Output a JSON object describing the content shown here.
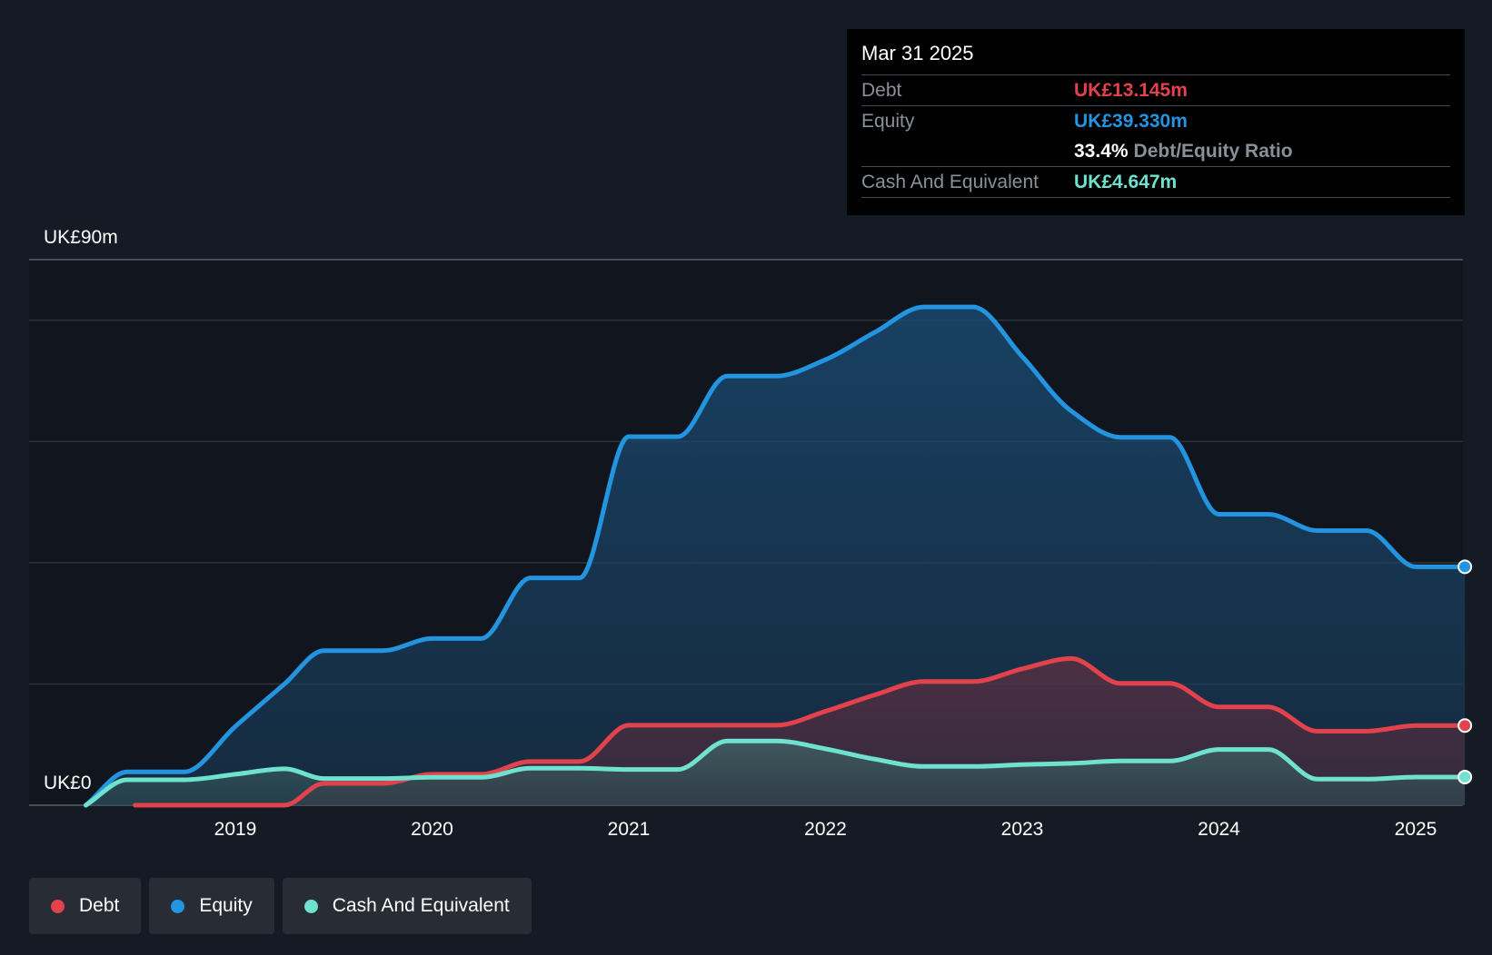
{
  "chart_data": {
    "type": "area",
    "title": "",
    "xlabel": "",
    "ylabel": "",
    "ylim": [
      0,
      90
    ],
    "y_ticks": [
      0,
      20,
      40,
      60,
      80
    ],
    "y_top_label": "UK£90m",
    "y_bottom_label": "UK£0",
    "x_tick_labels": [
      "2019",
      "2020",
      "2021",
      "2022",
      "2023",
      "2024",
      "2025"
    ],
    "x_tick_values": [
      2019,
      2020,
      2021,
      2022,
      2023,
      2024,
      2025
    ],
    "x_range": [
      2018.24,
      2025.25
    ],
    "series": [
      {
        "name": "Equity",
        "color": "#2394df",
        "x": [
          2018.24,
          2018.45,
          2018.74,
          2019.0,
          2019.25,
          2019.45,
          2019.75,
          2020.0,
          2020.25,
          2020.5,
          2020.75,
          2021.0,
          2021.25,
          2021.5,
          2021.75,
          2022.0,
          2022.25,
          2022.5,
          2022.75,
          2023.0,
          2023.25,
          2023.5,
          2023.75,
          2024.0,
          2024.25,
          2024.5,
          2024.75,
          2025.0,
          2025.25
        ],
        "values": [
          0,
          5.5,
          5.5,
          13,
          20,
          25.5,
          25.5,
          27.5,
          27.5,
          37.5,
          37.5,
          60.8,
          60.8,
          70.8,
          70.8,
          73.5,
          78,
          82.2,
          82.2,
          74,
          65,
          60.7,
          60.7,
          48,
          48,
          45.3,
          45.3,
          39.33,
          39.33
        ]
      },
      {
        "name": "Debt",
        "color": "#e2424c",
        "x": [
          2018.49,
          2018.75,
          2019.0,
          2019.25,
          2019.45,
          2019.75,
          2020.0,
          2020.25,
          2020.5,
          2020.75,
          2021.0,
          2021.25,
          2021.5,
          2021.75,
          2022.0,
          2022.25,
          2022.5,
          2022.75,
          2023.0,
          2023.25,
          2023.5,
          2023.75,
          2024.0,
          2024.25,
          2024.5,
          2024.75,
          2025.0,
          2025.25
        ],
        "values": [
          0,
          0,
          0,
          0,
          3.6,
          3.6,
          5.1,
          5.1,
          7.2,
          7.2,
          13.2,
          13.2,
          13.2,
          13.2,
          15.5,
          18.2,
          20.4,
          20.4,
          22.5,
          24.2,
          20.1,
          20.1,
          16.2,
          16.2,
          12.2,
          12.2,
          13.145,
          13.145
        ]
      },
      {
        "name": "Cash And Equivalent",
        "color": "#6ee2cf",
        "x": [
          2018.24,
          2018.45,
          2018.74,
          2019.0,
          2019.25,
          2019.45,
          2019.75,
          2020.0,
          2020.25,
          2020.5,
          2020.75,
          2021.0,
          2021.25,
          2021.5,
          2021.75,
          2022.0,
          2022.25,
          2022.5,
          2022.75,
          2023.0,
          2023.25,
          2023.5,
          2023.75,
          2024.0,
          2024.25,
          2024.5,
          2024.75,
          2025.0,
          2025.25
        ],
        "values": [
          0,
          4.2,
          4.2,
          5.1,
          6,
          4.4,
          4.4,
          4.6,
          4.6,
          6.1,
          6.1,
          5.9,
          5.9,
          10.6,
          10.6,
          9.3,
          7.6,
          6.4,
          6.4,
          6.7,
          6.9,
          7.3,
          7.3,
          9.2,
          9.2,
          4.3,
          4.3,
          4.647,
          4.647
        ]
      }
    ]
  },
  "tooltip": {
    "date": "Mar 31 2025",
    "debt_label": "Debt",
    "debt_value": "UK£13.145m",
    "equity_label": "Equity",
    "equity_value": "UK£39.330m",
    "ratio_value": "33.4%",
    "ratio_label": "Debt/Equity Ratio",
    "cash_label": "Cash And Equivalent",
    "cash_value": "UK£4.647m"
  },
  "legend": [
    {
      "label": "Debt",
      "color": "#e2424c"
    },
    {
      "label": "Equity",
      "color": "#2394df"
    },
    {
      "label": "Cash And Equivalent",
      "color": "#6ee2cf"
    }
  ],
  "colors": {
    "background": "#151b24",
    "plot_background": "#11151d",
    "debt": "#e2424c",
    "equity": "#2394df",
    "cash": "#6ee2cf"
  }
}
